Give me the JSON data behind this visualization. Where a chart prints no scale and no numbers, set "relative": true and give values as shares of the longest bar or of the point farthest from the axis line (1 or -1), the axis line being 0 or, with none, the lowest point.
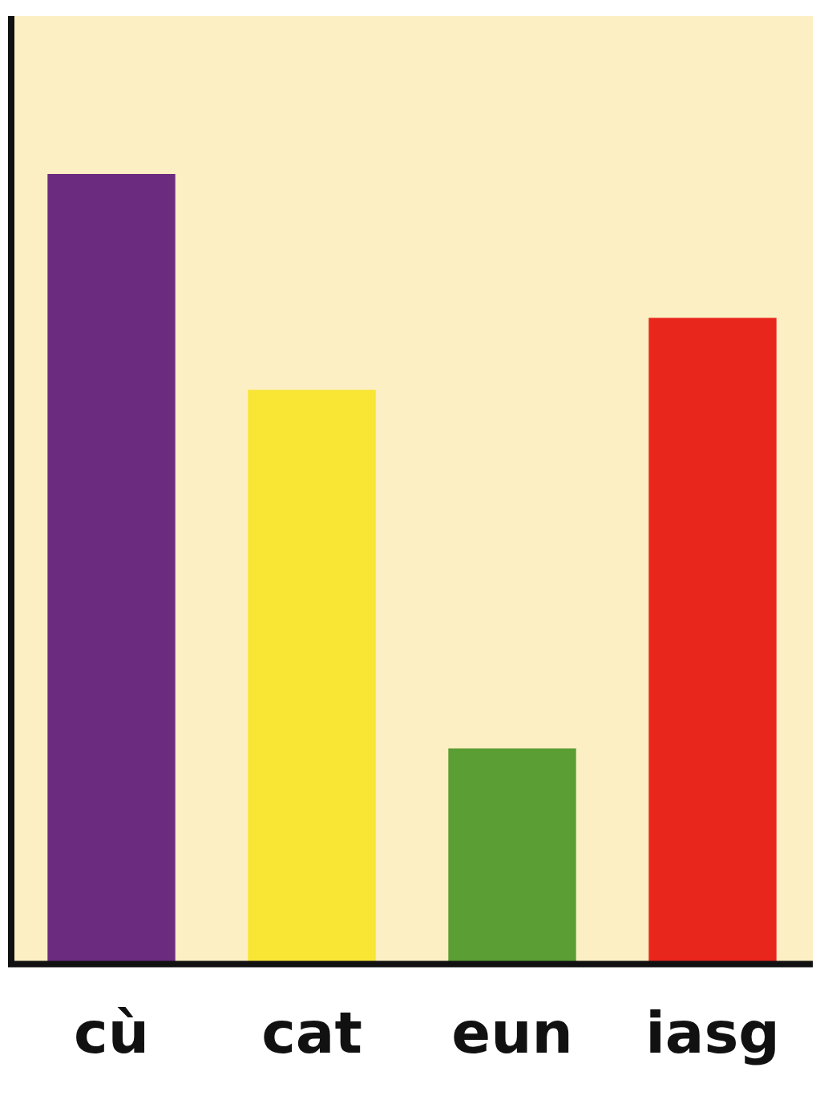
{
  "chart_data": {
    "type": "bar",
    "relative": true,
    "categories": [
      "cù",
      "cat",
      "eun",
      "iasg"
    ],
    "values": [
      1,
      0.727,
      0.273,
      0.818
    ],
    "colors": [
      "#6b2c80",
      "#f8e534",
      "#5a9e34",
      "#e8261c"
    ]
  }
}
